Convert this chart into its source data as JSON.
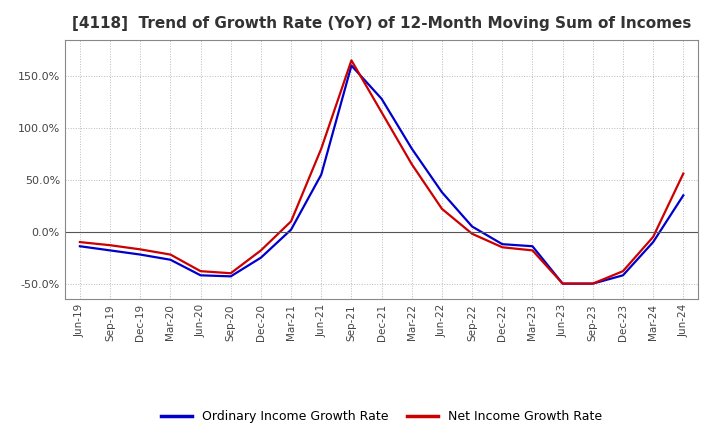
{
  "title": "[4118]  Trend of Growth Rate (YoY) of 12-Month Moving Sum of Incomes",
  "title_fontsize": 11,
  "background_color": "#ffffff",
  "plot_bg_color": "#ffffff",
  "grid_color": "#bbbbbb",
  "dates": [
    "Jun-19",
    "Sep-19",
    "Dec-19",
    "Mar-20",
    "Jun-20",
    "Sep-20",
    "Dec-20",
    "Mar-21",
    "Jun-21",
    "Sep-21",
    "Dec-21",
    "Mar-22",
    "Jun-22",
    "Sep-22",
    "Dec-22",
    "Mar-23",
    "Jun-23",
    "Sep-23",
    "Dec-23",
    "Mar-24",
    "Jun-24"
  ],
  "ordinary_income": [
    -0.14,
    -0.18,
    -0.22,
    -0.27,
    -0.42,
    -0.43,
    -0.25,
    0.02,
    0.55,
    1.6,
    1.28,
    0.8,
    0.38,
    0.05,
    -0.12,
    -0.14,
    -0.5,
    -0.5,
    -0.42,
    -0.1,
    0.35
  ],
  "net_income": [
    -0.1,
    -0.13,
    -0.17,
    -0.22,
    -0.38,
    -0.4,
    -0.18,
    0.1,
    0.8,
    1.65,
    1.15,
    0.65,
    0.22,
    -0.02,
    -0.15,
    -0.18,
    -0.5,
    -0.5,
    -0.38,
    -0.05,
    0.56
  ],
  "ordinary_color": "#0000cc",
  "net_color": "#cc0000",
  "legend_ordinary": "Ordinary Income Growth Rate",
  "legend_net": "Net Income Growth Rate",
  "line_width": 1.6,
  "ylim": [
    -0.65,
    1.85
  ],
  "yticks": [
    -0.5,
    0.0,
    0.5,
    1.0,
    1.5
  ]
}
